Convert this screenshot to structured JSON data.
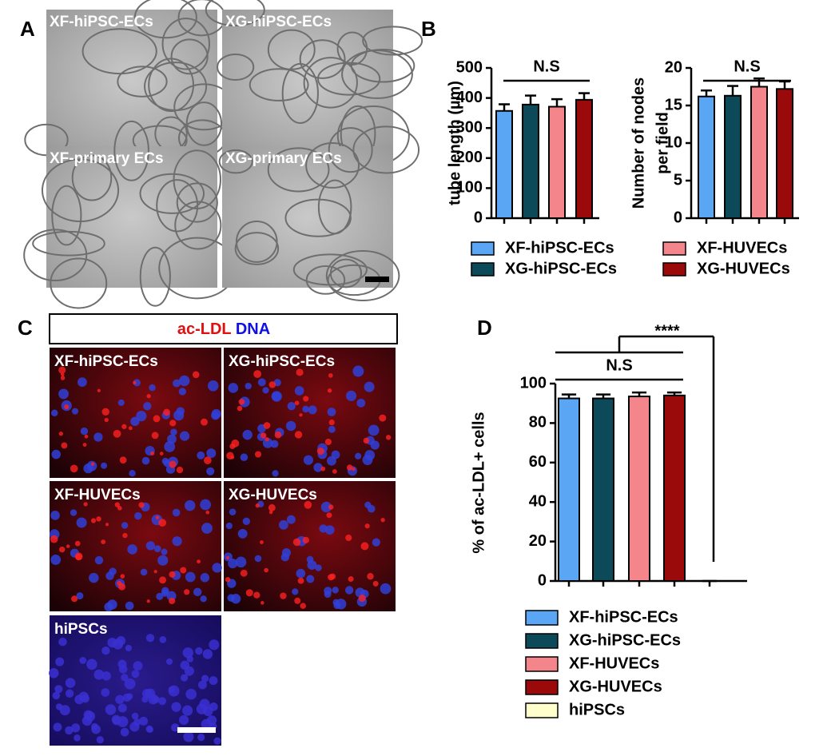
{
  "figure": {
    "panel_labels": [
      "A",
      "B",
      "C",
      "D"
    ],
    "panel_a_images": [
      "XF-hiPSC-ECs",
      "XG-hiPSC-ECs",
      "XF-primary ECs",
      "XG-primary ECs"
    ],
    "panel_c_header": [
      "ac-LDL",
      "DNA"
    ],
    "panel_c_images": [
      "XF-hiPSC-ECs",
      "XG-hiPSC-ECs",
      "XF-HUVECs",
      "XG-HUVECs",
      "hiPSCs"
    ]
  },
  "chart_data": [
    {
      "type": "bar",
      "ylabel": [
        "tube length (µm)"
      ],
      "ylim": [
        0,
        500
      ],
      "yticks": [
        0,
        100,
        200,
        300,
        400,
        500
      ],
      "annotations": [
        "N.S"
      ],
      "categories": [
        null
      ],
      "series": [
        {
          "name": "XF-hiPSC-ECs",
          "color": "#5aa6f5",
          "values": [
            357
          ],
          "errors": [
            22
          ]
        },
        {
          "name": "XG-hiPSC-ECs",
          "color": "#0c4a5a",
          "values": [
            378
          ],
          "errors": [
            30
          ]
        },
        {
          "name": "XF-HUVECs",
          "color": "#f4868b",
          "values": [
            371
          ],
          "errors": [
            25
          ]
        },
        {
          "name": "XG-HUVECs",
          "color": "#9b0a0a",
          "values": [
            394
          ],
          "errors": [
            22
          ]
        }
      ]
    },
    {
      "type": "bar",
      "ylabel": [
        "Number of nodes",
        "per field"
      ],
      "ylim": [
        0,
        20
      ],
      "yticks": [
        0,
        5,
        10,
        15,
        20
      ],
      "annotations": [
        "N.S"
      ],
      "categories": [
        null
      ],
      "series": [
        {
          "color": "#5aa6f5",
          "values": [
            16.2
          ],
          "errors": [
            0.8
          ]
        },
        {
          "color": "#0c4a5a",
          "values": [
            16.3
          ],
          "errors": [
            1.3
          ]
        },
        {
          "color": "#f4868b",
          "values": [
            17.5
          ],
          "errors": [
            1.1
          ]
        },
        {
          "color": "#9b0a0a",
          "values": [
            17.2
          ],
          "errors": [
            1.0
          ]
        }
      ]
    },
    {
      "type": "bar",
      "ylabel": [
        "% of ac-LDL+ cells"
      ],
      "ylim": [
        0,
        100
      ],
      "yticks": [
        0,
        20,
        40,
        60,
        80,
        100
      ],
      "annotations": [
        "****",
        "N.S"
      ],
      "categories": [
        null
      ],
      "series": [
        {
          "name": "XF-hiPSC-ECs",
          "color": "#5aa6f5",
          "values": [
            92.5
          ],
          "errors": [
            2
          ]
        },
        {
          "name": "XG-hiPSC-ECs",
          "color": "#0c4a5a",
          "values": [
            92.5
          ],
          "errors": [
            2
          ]
        },
        {
          "name": "XF-HUVECs",
          "color": "#f4868b",
          "values": [
            93.5
          ],
          "errors": [
            2
          ]
        },
        {
          "name": "XG-HUVECs",
          "color": "#9b0a0a",
          "values": [
            94
          ],
          "errors": [
            1.5
          ]
        },
        {
          "name": "hiPSCs",
          "color": "#ffffcc",
          "values": [
            0
          ],
          "errors": [
            0
          ]
        }
      ]
    }
  ]
}
